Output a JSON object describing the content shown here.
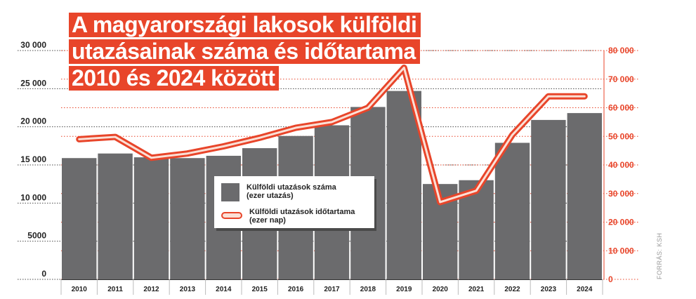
{
  "chart_data": {
    "type": "bar+line",
    "title_lines": [
      "A magyarországi lakosok külföldi",
      "utazásainak száma és időtartama",
      "2010 és 2024 között"
    ],
    "categories": [
      "2010",
      "2011",
      "2012",
      "2013",
      "2014",
      "2015",
      "2016",
      "2017",
      "2018",
      "2019",
      "2020",
      "2021",
      "2022",
      "2023",
      "2024"
    ],
    "series": [
      {
        "name": "Külföldi utazások száma",
        "name_unit": "(ezer utazás)",
        "type": "bar",
        "axis": "left",
        "values": [
          15900,
          16500,
          16000,
          15900,
          16200,
          17200,
          18800,
          20200,
          22600,
          24700,
          12500,
          13000,
          17900,
          20900,
          21800
        ]
      },
      {
        "name": "Külföldi utazások időtartama",
        "name_unit": "(ezer nap)",
        "type": "line",
        "axis": "right",
        "values": [
          49000,
          49800,
          42500,
          44000,
          46500,
          49500,
          53000,
          55000,
          60000,
          74000,
          27000,
          31000,
          50500,
          64000,
          64000
        ]
      }
    ],
    "y_left": {
      "min": 0,
      "max": 30000,
      "ticks": [
        0,
        5000,
        10000,
        15000,
        20000,
        25000,
        30000
      ],
      "tick_labels": [
        "0",
        "5000",
        "10 000",
        "15 000",
        "20 000",
        "25 000",
        "30 000"
      ]
    },
    "y_right": {
      "min": 0,
      "max": 80000,
      "ticks": [
        0,
        10000,
        20000,
        30000,
        40000,
        50000,
        60000,
        70000,
        80000
      ],
      "tick_labels": [
        "0",
        "10 000",
        "20 000",
        "30 000",
        "40 000",
        "50 000",
        "60 000",
        "70 000",
        "80 000"
      ]
    },
    "grid": true,
    "legend_position": "center",
    "source": "FORRÁS: KSH",
    "colors": {
      "bar": "#6b6b6d",
      "line": "#e8452a",
      "line_fill": "#fbe0d6",
      "left_axis_text": "#222222",
      "right_axis_text": "#e8452a",
      "grid_left": "#4a4a4a",
      "grid_right": "#e8452a"
    }
  }
}
